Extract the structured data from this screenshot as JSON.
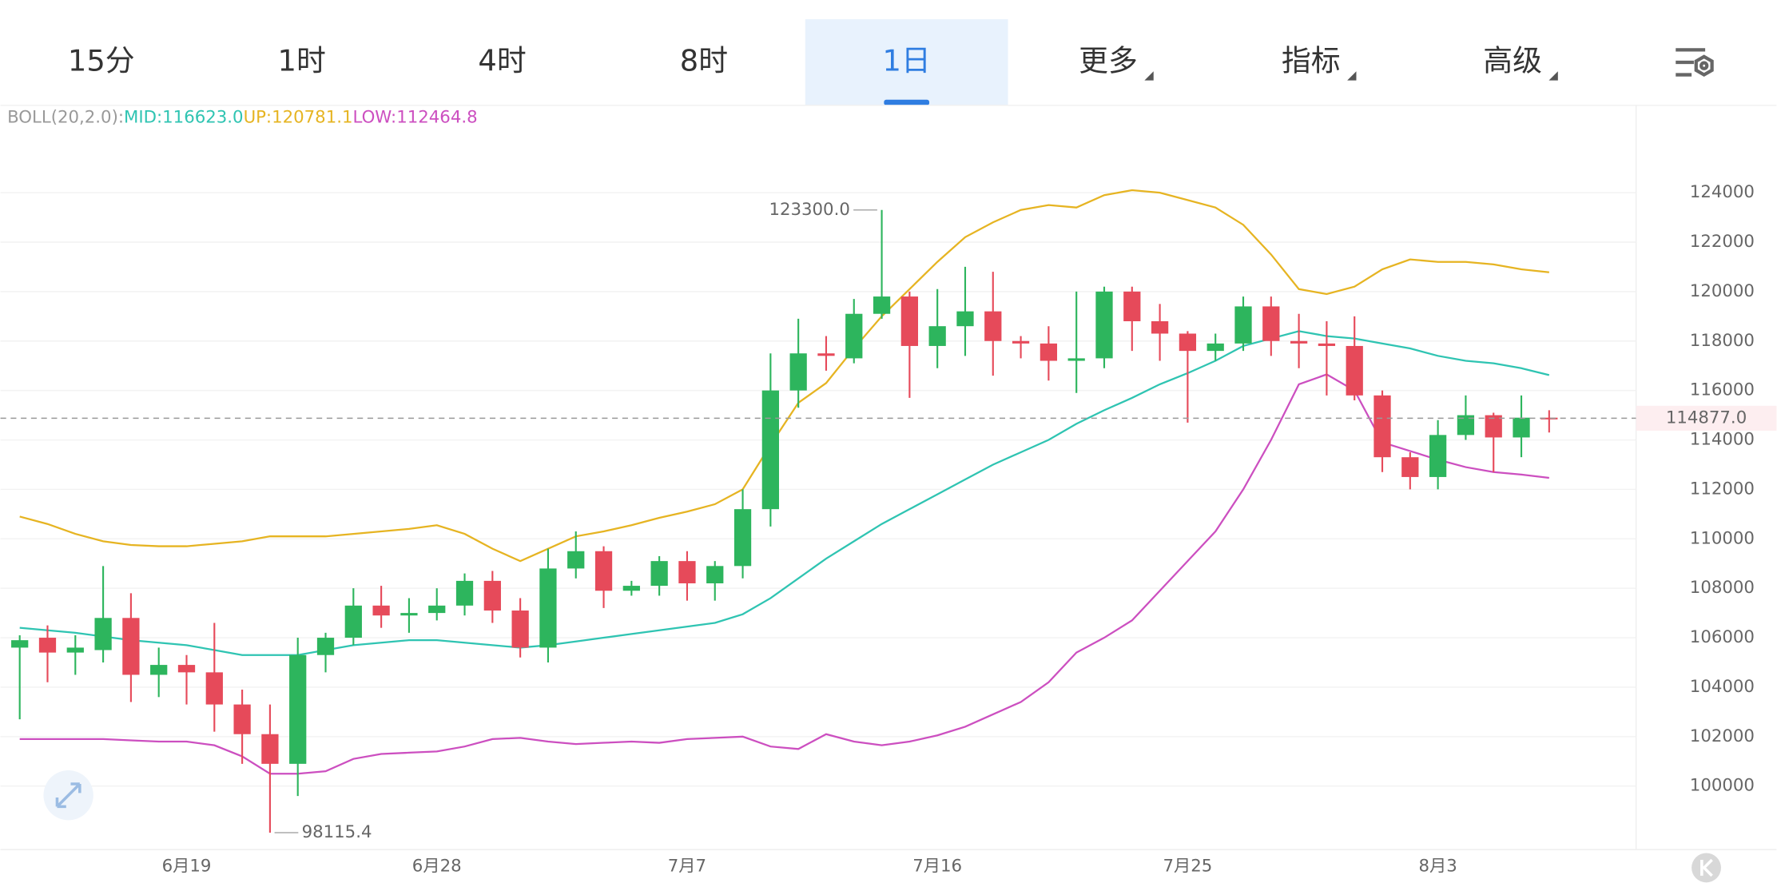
{
  "tabs": [
    "15分",
    "1时",
    "4时",
    "8时",
    "1日",
    "更多",
    "指标",
    "高级"
  ],
  "active_tab": 4,
  "chart_data": {
    "type": "candlestick",
    "indicator": "BOLL(20,2.0):",
    "categories": [
      null,
      null,
      null,
      null,
      null,
      null,
      "6月19",
      null,
      null,
      null,
      null,
      null,
      null,
      null,
      null,
      "6月28",
      null,
      null,
      null,
      null,
      null,
      null,
      null,
      null,
      "7月7",
      null,
      null,
      null,
      null,
      null,
      null,
      null,
      null,
      "7月16",
      null,
      null,
      null,
      null,
      null,
      null,
      null,
      null,
      "7月25",
      null,
      null,
      null,
      null,
      null,
      null,
      null,
      null,
      "8月3",
      null,
      null,
      null,
      null
    ],
    "open": [
      105600,
      106000,
      105400,
      105500,
      106800,
      104500,
      104900,
      104600,
      103300,
      102100,
      100900,
      105300,
      106000,
      107300,
      106900,
      107000,
      107300,
      108300,
      107100,
      105600,
      108800,
      109500,
      107900,
      108100,
      109100,
      108200,
      108900,
      111200,
      116000,
      117500,
      117300,
      119100,
      119800,
      117800,
      118600,
      119200,
      118000,
      117900,
      117200,
      117300,
      120000,
      118800,
      118300,
      117600,
      117900,
      119400,
      118000,
      117900,
      117800,
      115800,
      113300,
      112500,
      114200,
      115000,
      114100,
      114900
    ],
    "high": [
      106100,
      106500,
      106100,
      108900,
      107800,
      105600,
      105300,
      106600,
      103900,
      103300,
      106000,
      106200,
      108000,
      108100,
      107600,
      108000,
      108600,
      108700,
      107600,
      109600,
      110300,
      109700,
      108300,
      109300,
      109500,
      109100,
      112000,
      117500,
      118900,
      118200,
      119700,
      123300,
      120000,
      120100,
      121000,
      120800,
      118200,
      118600,
      120000,
      120200,
      120200,
      119500,
      118400,
      118300,
      119800,
      119800,
      119100,
      118800,
      119000,
      116000,
      113500,
      114800,
      115800,
      115100,
      115800,
      115200
    ],
    "low": [
      102700,
      104200,
      104500,
      105000,
      103400,
      103600,
      103300,
      102200,
      100900,
      98115.4,
      99600,
      104600,
      105700,
      106400,
      106200,
      106700,
      106900,
      106600,
      105200,
      105000,
      108400,
      107200,
      107700,
      107700,
      107500,
      107500,
      108400,
      110500,
      115300,
      116800,
      117100,
      118900,
      115700,
      116900,
      117400,
      116600,
      117300,
      116400,
      115900,
      116900,
      117600,
      117200,
      114700,
      117200,
      117600,
      117400,
      116900,
      115800,
      115600,
      112700,
      112000,
      112000,
      114000,
      112700,
      113300,
      114300
    ],
    "close": [
      105900,
      105400,
      105600,
      106800,
      104500,
      104900,
      104600,
      103300,
      102100,
      100900,
      105300,
      106000,
      107300,
      106900,
      107000,
      107300,
      108300,
      107100,
      105600,
      108800,
      109500,
      107900,
      108100,
      109100,
      108200,
      108900,
      111200,
      116000,
      117500,
      117400,
      119100,
      119800,
      117800,
      118600,
      119200,
      118000,
      117900,
      117200,
      117300,
      120000,
      118800,
      118300,
      117600,
      117900,
      119400,
      118000,
      117900,
      117800,
      115800,
      113300,
      112500,
      114200,
      115000,
      114100,
      114900,
      114877
    ],
    "up_color": "#2db55d",
    "down_color": "#e64a5a",
    "series": [
      {
        "name": "MID",
        "legend_label": "MID:116623.0",
        "color": "#2fc4b2",
        "values": [
          106400,
          106300,
          106200,
          106050,
          105900,
          105800,
          105700,
          105500,
          105300,
          105300,
          105300,
          105500,
          105700,
          105800,
          105900,
          105900,
          105800,
          105700,
          105600,
          105700,
          105850,
          106000,
          106150,
          106300,
          106450,
          106600,
          106950,
          107600,
          108400,
          109200,
          109900,
          110600,
          111200,
          111800,
          112400,
          113000,
          113500,
          114000,
          114650,
          115200,
          115700,
          116250,
          116700,
          117200,
          117800,
          118100,
          118400,
          118200,
          118100,
          117900,
          117700,
          117400,
          117200,
          117100,
          116900,
          116623
        ]
      },
      {
        "name": "UP",
        "legend_label": "UP:120781.1",
        "color": "#e6b422",
        "values": [
          110900,
          110600,
          110200,
          109900,
          109750,
          109700,
          109700,
          109800,
          109900,
          110100,
          110100,
          110100,
          110200,
          110300,
          110400,
          110550,
          110200,
          109600,
          109100,
          109600,
          110100,
          110300,
          110550,
          110850,
          111100,
          111400,
          112000,
          113800,
          115500,
          116300,
          117700,
          119000,
          120100,
          121200,
          122200,
          122800,
          123300,
          123500,
          123400,
          123900,
          124100,
          124000,
          123700,
          123400,
          122700,
          121500,
          120100,
          119900,
          120200,
          120900,
          121300,
          121200,
          121200,
          121100,
          120900,
          120781.1
        ]
      },
      {
        "name": "LOW",
        "legend_label": "LOW:112464.8",
        "color": "#cc4fc0",
        "values": [
          101900,
          101900,
          101900,
          101900,
          101850,
          101800,
          101800,
          101650,
          101200,
          100500,
          100500,
          100600,
          101100,
          101300,
          101350,
          101400,
          101600,
          101900,
          101950,
          101800,
          101700,
          101750,
          101800,
          101750,
          101900,
          101950,
          102000,
          101600,
          101500,
          102100,
          101800,
          101650,
          101800,
          102050,
          102400,
          102900,
          103400,
          104200,
          105400,
          106000,
          106700,
          107900,
          109100,
          110300,
          112000,
          114000,
          116250,
          116650,
          116000,
          113900,
          113550,
          113200,
          112900,
          112700,
          112600,
          112464.8
        ]
      }
    ],
    "high_label": {
      "value": 123300,
      "label": "123300.0"
    },
    "low_label": {
      "value": 98115.4,
      "label": "98115.4"
    },
    "last_price": {
      "value": 114877,
      "label": "114877.0"
    },
    "ylim": [
      97430,
      127440
    ],
    "yticks": [
      100000,
      102000,
      104000,
      106000,
      108000,
      110000,
      112000,
      114000,
      116000,
      118000,
      120000,
      122000,
      124000
    ],
    "grid": true
  }
}
